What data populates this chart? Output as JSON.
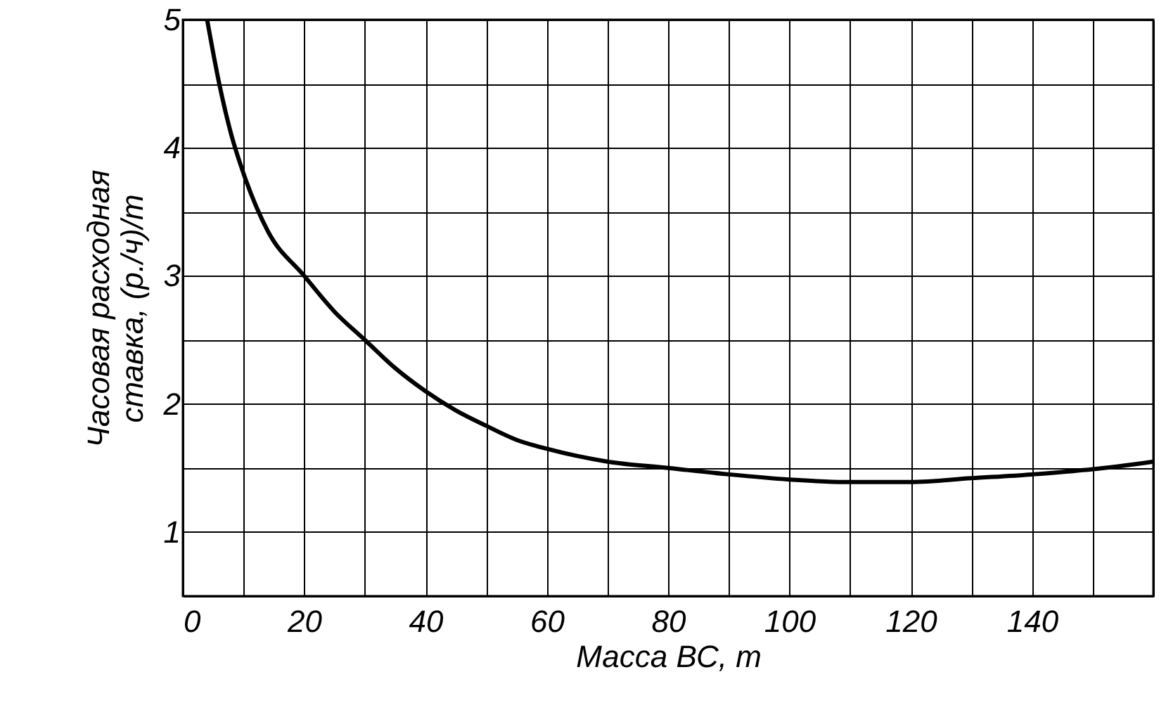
{
  "chart_data": {
    "type": "line",
    "xlabel": "Масса ВС, т",
    "ylabel": "Часовая расходная\nставка, (р./ч)/т",
    "x": [
      4,
      6,
      8,
      10,
      14,
      20,
      25,
      30,
      35,
      40,
      45,
      50,
      55,
      60,
      70,
      80,
      90,
      100,
      110,
      120,
      130,
      140,
      150,
      160
    ],
    "series": [
      {
        "color": "#000000",
        "values": [
          5.0,
          4.5,
          4.1,
          3.8,
          3.35,
          3.0,
          2.72,
          2.5,
          2.28,
          2.1,
          1.95,
          1.83,
          1.72,
          1.65,
          1.55,
          1.5,
          1.45,
          1.41,
          1.39,
          1.39,
          1.42,
          1.45,
          1.49,
          1.55
        ]
      }
    ],
    "xlim": [
      0,
      160
    ],
    "ylim": [
      0.5,
      5
    ],
    "xticks": [
      0,
      {
        "value": 10,
        "label": null
      },
      20,
      {
        "value": 30,
        "label": null
      },
      40,
      {
        "value": 50,
        "label": null
      },
      60,
      {
        "value": 70,
        "label": null
      },
      80,
      {
        "value": 90,
        "label": null
      },
      100,
      {
        "value": 110,
        "label": null
      },
      120,
      {
        "value": 130,
        "label": null
      },
      140,
      {
        "value": 150,
        "label": null
      },
      {
        "value": 160,
        "label": null
      }
    ],
    "yticks": [
      {
        "value": 0.5,
        "label": null
      },
      1,
      {
        "value": 1.5,
        "label": null
      },
      2,
      {
        "value": 2.5,
        "label": null
      },
      3,
      {
        "value": 3.5,
        "label": null
      },
      4,
      {
        "value": 4.5,
        "label": null
      },
      5
    ],
    "grid": true,
    "line_style": "solid",
    "marker": "none"
  }
}
